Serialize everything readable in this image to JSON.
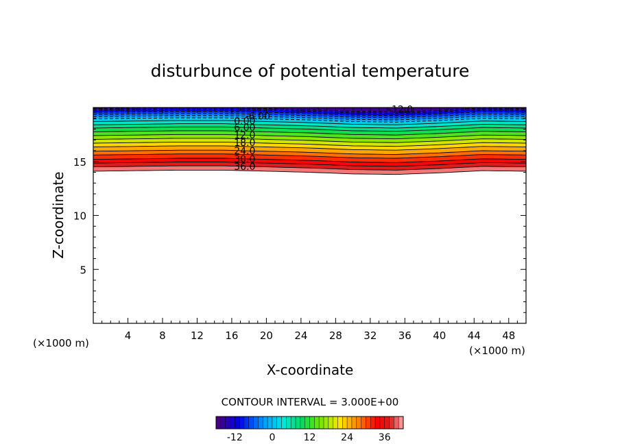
{
  "chart_data": {
    "type": "contour",
    "title": "disturbunce of potential temperature",
    "xlabel": "X-coordinate",
    "ylabel": "Z-coordinate",
    "x_unit_label": "(×1000 m)",
    "y_unit_label": "(×1000 m)",
    "xlim": [
      0,
      50
    ],
    "ylim": [
      0,
      20
    ],
    "x_ticks": [
      4,
      8,
      12,
      16,
      20,
      24,
      28,
      32,
      36,
      40,
      44,
      48
    ],
    "y_ticks": [
      5,
      10,
      15
    ],
    "contour_interval_label": "CONTOUR INTERVAL = 3.000E+00",
    "contour_interval": 3,
    "levels": [
      -18,
      -15,
      -12,
      -9,
      -6,
      -3,
      0,
      3,
      6,
      9,
      12,
      15,
      18,
      21,
      24,
      27,
      30,
      33,
      36,
      39
    ],
    "level_heights_at_reference_x": [
      19.9,
      19.75,
      19.55,
      19.35,
      19.15,
      18.95,
      18.7,
      18.4,
      18.1,
      17.75,
      17.4,
      17.05,
      16.7,
      16.35,
      15.95,
      15.6,
      15.2,
      14.85,
      14.5,
      14.1
    ],
    "profile_x": [
      0,
      5,
      10,
      15,
      20,
      25,
      30,
      35,
      40,
      45,
      50
    ],
    "profile_dz": [
      0,
      0.05,
      0.1,
      0.1,
      0,
      -0.1,
      -0.25,
      -0.3,
      -0.15,
      0.05,
      0
    ],
    "contour_labels": [
      {
        "text": "-12.0",
        "x": 35.5,
        "y": 19.85
      },
      {
        "text": "-6.00",
        "x": 19.0,
        "y": 19.2
      },
      {
        "text": "0.00",
        "x": 17.5,
        "y": 18.75
      },
      {
        "text": "6.00",
        "x": 17.5,
        "y": 18.15
      },
      {
        "text": "12.0",
        "x": 17.5,
        "y": 17.45
      },
      {
        "text": "18.0",
        "x": 17.5,
        "y": 16.75
      },
      {
        "text": "24.0",
        "x": 17.5,
        "y": 16.0
      },
      {
        "text": "30.0",
        "x": 17.5,
        "y": 15.25
      },
      {
        "text": "36.0",
        "x": 17.5,
        "y": 14.55
      }
    ],
    "colorbar": {
      "range": [
        -18,
        42
      ],
      "tick_values": [
        -12,
        0,
        12,
        24,
        36
      ],
      "tick_labels": [
        "-12",
        "0",
        "12",
        "24",
        "36"
      ]
    }
  }
}
